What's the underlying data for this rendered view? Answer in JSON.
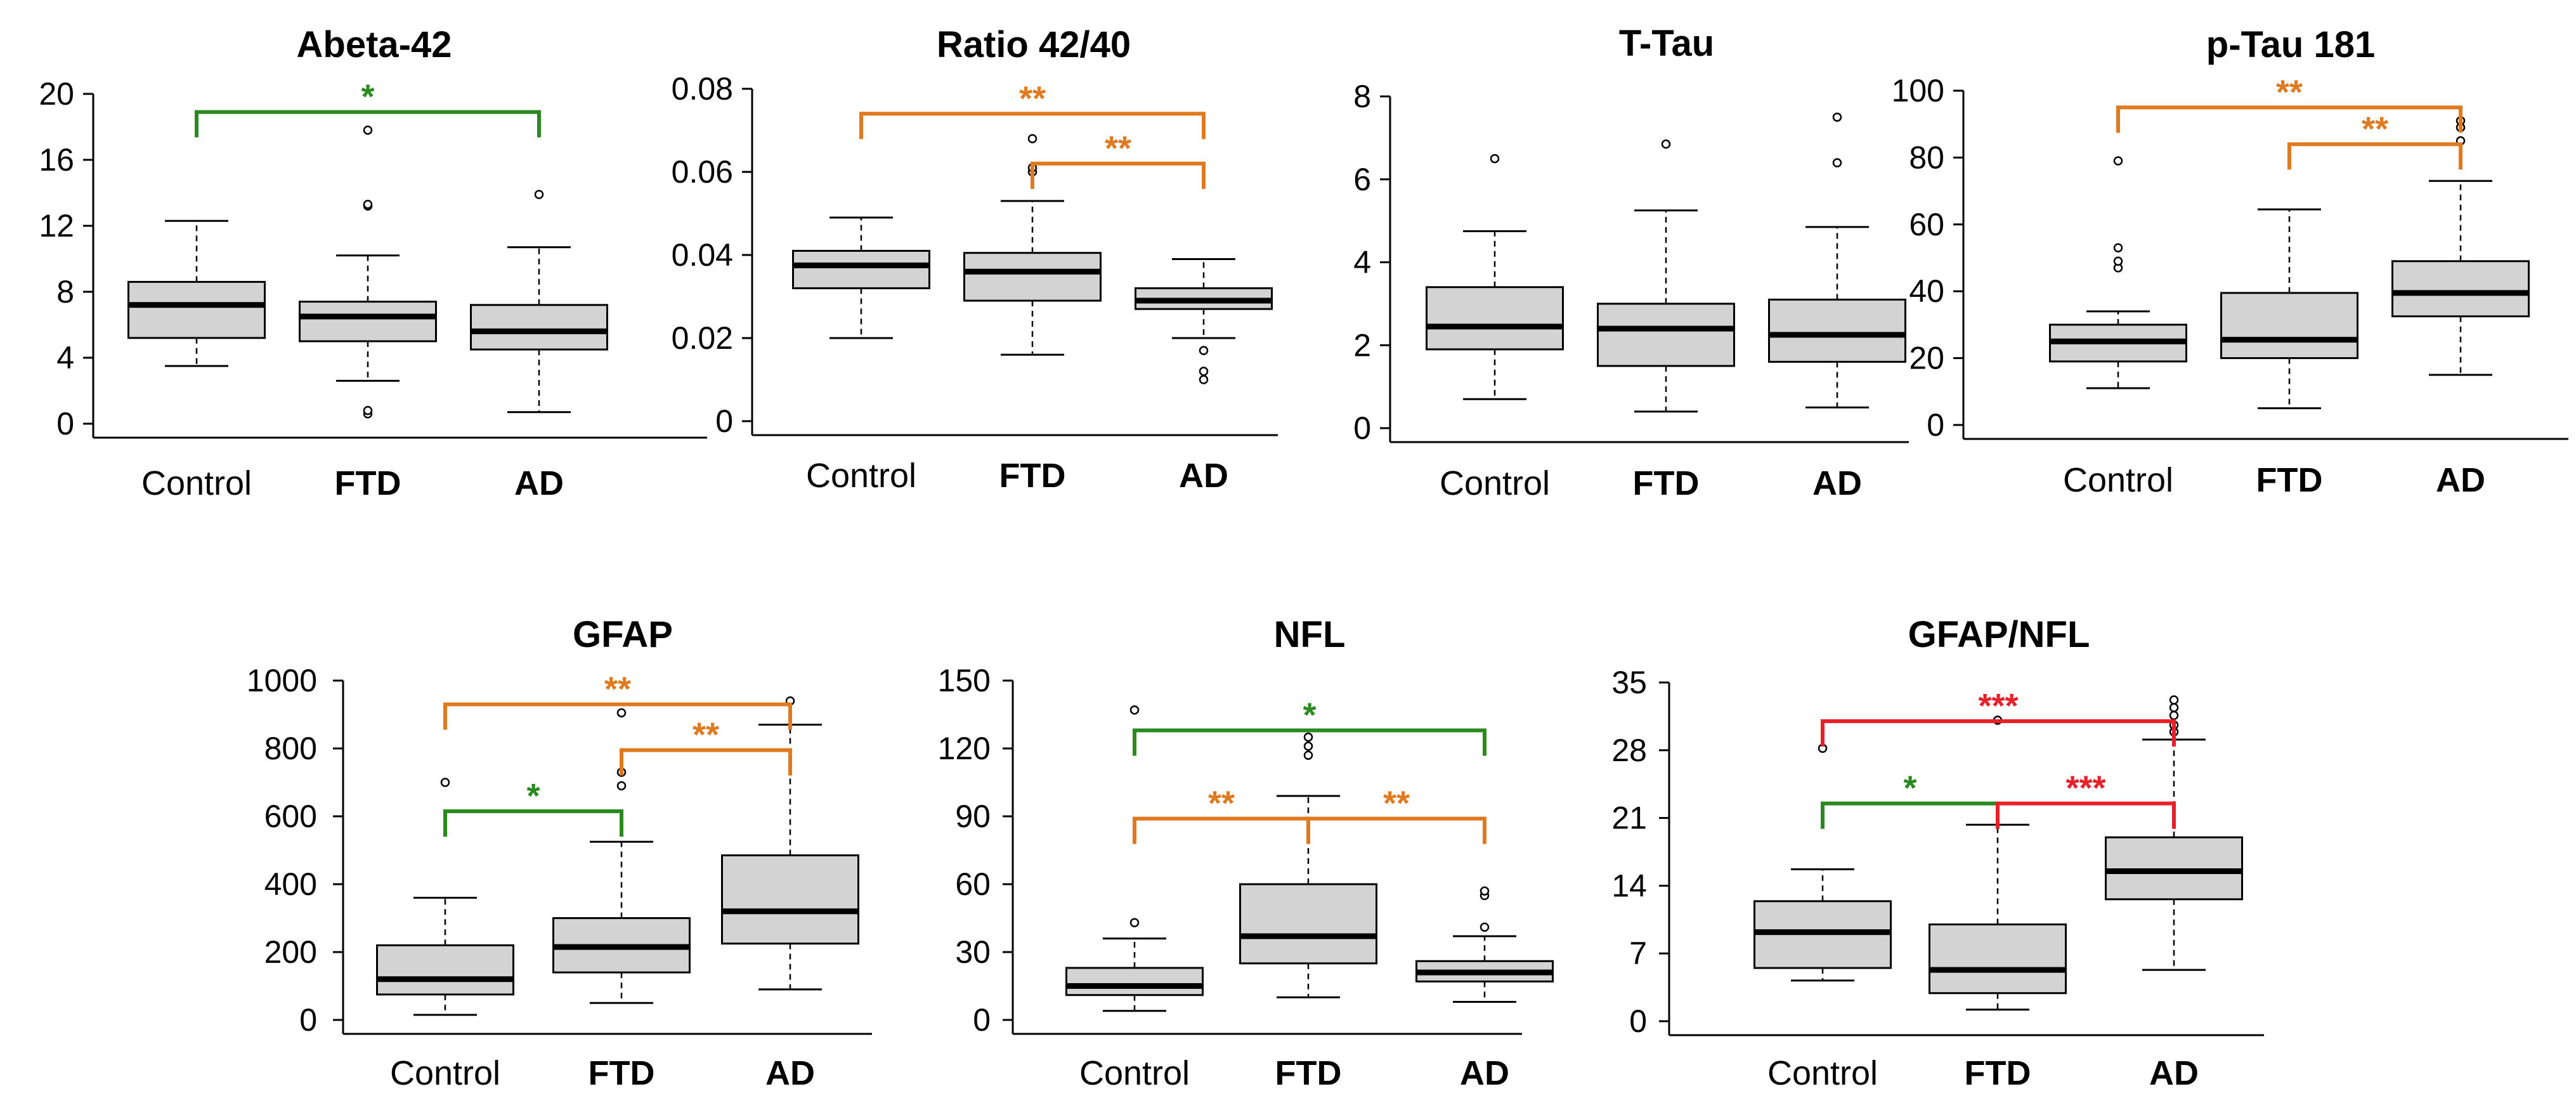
{
  "figure": {
    "colors": {
      "box_fill": "#d3d3d3",
      "box_stroke": "#000000",
      "sig_green": "#2a8a1f",
      "sig_orange": "#e07a1f",
      "sig_red": "#e8202a"
    }
  },
  "chart_data": [
    {
      "type": "box",
      "title": "Abeta-42",
      "categories": [
        "Control",
        "FTD",
        "AD"
      ],
      "ylim": [
        0,
        20
      ],
      "yticks": [
        0,
        4,
        8,
        12,
        16,
        20
      ],
      "ytick_labels": [
        "0",
        "4",
        "8",
        "12",
        "16",
        "20"
      ],
      "boxes": [
        {
          "label": "Control",
          "whisker_low": 3.5,
          "q1": 5.2,
          "median": 7.2,
          "q3": 8.6,
          "whisker_high": 12.3,
          "outliers": []
        },
        {
          "label": "FTD",
          "whisker_low": 2.6,
          "q1": 5.0,
          "median": 6.5,
          "q3": 7.4,
          "whisker_high": 10.2,
          "outliers": [
            0.6,
            0.8,
            13.2,
            13.3,
            17.8
          ]
        },
        {
          "label": "AD",
          "whisker_low": 0.7,
          "q1": 4.5,
          "median": 5.6,
          "q3": 7.2,
          "whisker_high": 10.7,
          "outliers": [
            13.9
          ]
        }
      ],
      "significance": [
        {
          "from": 0,
          "to": 2,
          "y": 18.9,
          "label": "*",
          "color": "#2a8a1f"
        }
      ]
    },
    {
      "type": "box",
      "title": "Ratio 42/40",
      "categories": [
        "Control",
        "FTD",
        "AD"
      ],
      "ylim": [
        0,
        0.08
      ],
      "yticks": [
        0,
        0.02,
        0.04,
        0.06,
        0.08
      ],
      "ytick_labels": [
        "0",
        "0.02",
        "0.04",
        "0.06",
        "0.08"
      ],
      "boxes": [
        {
          "label": "Control",
          "whisker_low": 0.02,
          "q1": 0.032,
          "median": 0.0375,
          "q3": 0.041,
          "whisker_high": 0.049,
          "outliers": []
        },
        {
          "label": "FTD",
          "whisker_low": 0.016,
          "q1": 0.029,
          "median": 0.036,
          "q3": 0.0405,
          "whisker_high": 0.053,
          "outliers": [
            0.06,
            0.061,
            0.068
          ]
        },
        {
          "label": "AD",
          "whisker_low": 0.02,
          "q1": 0.027,
          "median": 0.029,
          "q3": 0.032,
          "whisker_high": 0.039,
          "outliers": [
            0.01,
            0.012,
            0.017
          ]
        }
      ],
      "significance": [
        {
          "from": 0,
          "to": 2,
          "y": 0.074,
          "label": "**",
          "color": "#e07a1f"
        },
        {
          "from": 1,
          "to": 2,
          "y": 0.062,
          "label": "**",
          "color": "#e07a1f"
        }
      ]
    },
    {
      "type": "box",
      "title": "T-Tau",
      "categories": [
        "Control",
        "FTD",
        "AD"
      ],
      "ylim": [
        0,
        8
      ],
      "yticks": [
        0,
        2,
        4,
        6,
        8
      ],
      "ytick_labels": [
        "0",
        "2",
        "4",
        "6",
        "8"
      ],
      "boxes": [
        {
          "label": "Control",
          "whisker_low": 0.7,
          "q1": 1.9,
          "median": 2.45,
          "q3": 3.4,
          "whisker_high": 4.75,
          "outliers": [
            6.5
          ]
        },
        {
          "label": "FTD",
          "whisker_low": 0.4,
          "q1": 1.5,
          "median": 2.4,
          "q3": 3.0,
          "whisker_high": 5.25,
          "outliers": [
            6.85
          ]
        },
        {
          "label": "AD",
          "whisker_low": 0.5,
          "q1": 1.6,
          "median": 2.25,
          "q3": 3.1,
          "whisker_high": 4.85,
          "outliers": [
            6.4,
            7.5
          ]
        }
      ],
      "significance": []
    },
    {
      "type": "box",
      "title": "p-Tau 181",
      "categories": [
        "Control",
        "FTD",
        "AD"
      ],
      "ylim": [
        0,
        100
      ],
      "yticks": [
        0,
        20,
        40,
        60,
        80,
        100
      ],
      "ytick_labels": [
        "0",
        "20",
        "40",
        "60",
        "80",
        "100"
      ],
      "boxes": [
        {
          "label": "Control",
          "whisker_low": 11,
          "q1": 19,
          "median": 25,
          "q3": 30,
          "whisker_high": 34,
          "outliers": [
            47,
            49,
            53,
            79
          ]
        },
        {
          "label": "FTD",
          "whisker_low": 5,
          "q1": 20,
          "median": 25.5,
          "q3": 39.5,
          "whisker_high": 64.5,
          "outliers": []
        },
        {
          "label": "AD",
          "whisker_low": 15,
          "q1": 32.5,
          "median": 39.5,
          "q3": 49,
          "whisker_high": 73,
          "outliers": [
            85,
            89,
            91
          ]
        }
      ],
      "significance": [
        {
          "from": 0,
          "to": 2,
          "y": 95,
          "label": "**",
          "color": "#e07a1f"
        },
        {
          "from": 1,
          "to": 2,
          "y": 84,
          "label": "**",
          "color": "#e07a1f"
        }
      ]
    },
    {
      "type": "box",
      "title": "GFAP",
      "categories": [
        "Control",
        "FTD",
        "AD"
      ],
      "ylim": [
        0,
        1000
      ],
      "yticks": [
        0,
        200,
        400,
        600,
        800,
        1000
      ],
      "ytick_labels": [
        "0",
        "200",
        "400",
        "600",
        "800",
        "1000"
      ],
      "boxes": [
        {
          "label": "Control",
          "whisker_low": 15,
          "q1": 75,
          "median": 120,
          "q3": 220,
          "whisker_high": 360,
          "outliers": [
            700
          ]
        },
        {
          "label": "FTD",
          "whisker_low": 50,
          "q1": 140,
          "median": 215,
          "q3": 300,
          "whisker_high": 525,
          "outliers": [
            690,
            730,
            905
          ]
        },
        {
          "label": "AD",
          "whisker_low": 90,
          "q1": 225,
          "median": 320,
          "q3": 485,
          "whisker_high": 870,
          "outliers": [
            940
          ]
        }
      ],
      "significance": [
        {
          "from": 0,
          "to": 2,
          "y": 930,
          "label": "**",
          "color": "#e07a1f"
        },
        {
          "from": 1,
          "to": 2,
          "y": 795,
          "label": "**",
          "color": "#e07a1f"
        },
        {
          "from": 0,
          "to": 1,
          "y": 615,
          "label": "*",
          "color": "#2a8a1f"
        }
      ]
    },
    {
      "type": "box",
      "title": "NFL",
      "categories": [
        "Control",
        "FTD",
        "AD"
      ],
      "ylim": [
        0,
        150
      ],
      "yticks": [
        0,
        30,
        60,
        90,
        120,
        150
      ],
      "ytick_labels": [
        "0",
        "30",
        "60",
        "90",
        "120",
        "150"
      ],
      "boxes": [
        {
          "label": "Control",
          "whisker_low": 4,
          "q1": 11,
          "median": 15,
          "q3": 23,
          "whisker_high": 36,
          "outliers": [
            43,
            137
          ]
        },
        {
          "label": "FTD",
          "whisker_low": 10,
          "q1": 25,
          "median": 37,
          "q3": 60,
          "whisker_high": 99,
          "outliers": [
            117,
            121,
            125
          ]
        },
        {
          "label": "AD",
          "whisker_low": 8,
          "q1": 17,
          "median": 21,
          "q3": 26,
          "whisker_high": 37,
          "outliers": [
            41,
            55,
            57
          ]
        }
      ],
      "significance": [
        {
          "from": 0,
          "to": 2,
          "y": 128,
          "label": "*",
          "color": "#2a8a1f"
        },
        {
          "from": 0,
          "to": 1,
          "y": 89,
          "label": "**",
          "color": "#e07a1f"
        },
        {
          "from": 1,
          "to": 2,
          "y": 89,
          "label": "**",
          "color": "#e07a1f"
        }
      ]
    },
    {
      "type": "box",
      "title": "GFAP/NFL",
      "categories": [
        "Control",
        "FTD",
        "AD"
      ],
      "ylim": [
        0,
        35
      ],
      "yticks": [
        0,
        7,
        14,
        21,
        28,
        35
      ],
      "ytick_labels": [
        "0",
        "7",
        "14",
        "21",
        "28",
        "35"
      ],
      "boxes": [
        {
          "label": "Control",
          "whisker_low": 4.2,
          "q1": 5.5,
          "median": 9.2,
          "q3": 12.4,
          "whisker_high": 15.7,
          "outliers": [
            28.2
          ]
        },
        {
          "label": "FTD",
          "whisker_low": 1.2,
          "q1": 2.9,
          "median": 5.3,
          "q3": 10.0,
          "whisker_high": 20.3,
          "outliers": [
            31.1
          ]
        },
        {
          "label": "AD",
          "whisker_low": 5.3,
          "q1": 12.6,
          "median": 15.5,
          "q3": 19.0,
          "whisker_high": 29.1,
          "outliers": [
            29.9,
            30.6,
            31.6,
            32.4,
            33.2
          ]
        }
      ],
      "significance": [
        {
          "from": 0,
          "to": 2,
          "y": 31.0,
          "label": "***",
          "color": "#e8202a"
        },
        {
          "from": 0,
          "to": 1,
          "y": 22.5,
          "label": "*",
          "color": "#2a8a1f"
        },
        {
          "from": 1,
          "to": 2,
          "y": 22.5,
          "label": "***",
          "color": "#e8202a"
        }
      ]
    }
  ]
}
